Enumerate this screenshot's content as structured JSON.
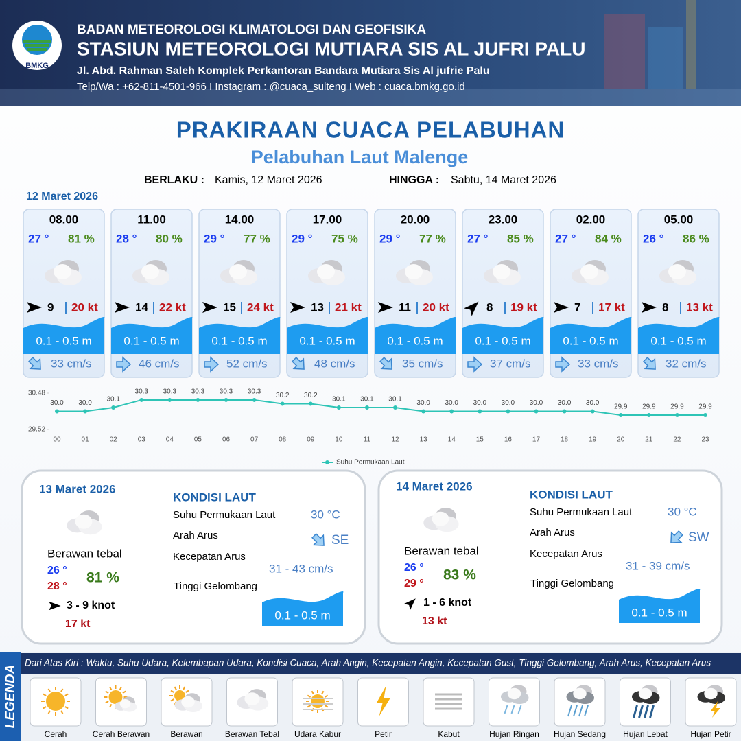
{
  "header": {
    "logo": "BMKG",
    "agency": "BADAN METEOROLOGI KLIMATOLOGI DAN GEOFISIKA",
    "station": "STASIUN METEOROLOGI MUTIARA SIS AL JUFRI PALU",
    "address": "Jl. Abd. Rahman Saleh Komplek Perkantoran Bandara Mutiara Sis Al jufrie Palu",
    "contact": "Telp/Wa : +62-811-4501-966  I  Instagram : @cuaca_sulteng  I  Web : cuaca.bmkg.go.id"
  },
  "title": "PRAKIRAAN CUACA PELABUHAN",
  "subtitle": "Pelabuhan Laut Malenge",
  "validity": {
    "from_label": "BERLAKU :",
    "from": "Kamis, 12 Maret 2026",
    "to_label": "HINGGA :",
    "to": "Sabtu, 14 Maret 2026"
  },
  "day1": {
    "date": "12 Maret 2026",
    "slots": [
      {
        "time": "08.00",
        "temp": "27 °",
        "humidity": "81 %",
        "wind": "9",
        "gust": "20 kt",
        "wave": "0.1 - 0.5 m",
        "current": "33 cm/s"
      },
      {
        "time": "11.00",
        "temp": "28 °",
        "humidity": "80 %",
        "wind": "14",
        "gust": "22 kt",
        "wave": "0.1 - 0.5 m",
        "current": "46 cm/s"
      },
      {
        "time": "14.00",
        "temp": "29 °",
        "humidity": "77 %",
        "wind": "15",
        "gust": "24 kt",
        "wave": "0.1 - 0.5 m",
        "current": "52 cm/s"
      },
      {
        "time": "17.00",
        "temp": "29 °",
        "humidity": "75 %",
        "wind": "13",
        "gust": "21 kt",
        "wave": "0.1 - 0.5 m",
        "current": "48 cm/s"
      },
      {
        "time": "20.00",
        "temp": "29 °",
        "humidity": "77 %",
        "wind": "11",
        "gust": "20 kt",
        "wave": "0.1 - 0.5 m",
        "current": "35 cm/s"
      },
      {
        "time": "23.00",
        "temp": "27 °",
        "humidity": "85 %",
        "wind": "8",
        "gust": "19 kt",
        "wave": "0.1 - 0.5 m",
        "current": "37 cm/s"
      },
      {
        "time": "02.00",
        "temp": "27 °",
        "humidity": "84 %",
        "wind": "7",
        "gust": "17 kt",
        "wave": "0.1 - 0.5 m",
        "current": "33 cm/s"
      },
      {
        "time": "05.00",
        "temp": "26 °",
        "humidity": "86 %",
        "wind": "8",
        "gust": "13 kt",
        "wave": "0.1 - 0.5 m",
        "current": "32 cm/s"
      }
    ]
  },
  "chart_data": {
    "type": "line",
    "categories": [
      "00",
      "01",
      "02",
      "03",
      "04",
      "05",
      "06",
      "07",
      "08",
      "09",
      "10",
      "11",
      "12",
      "13",
      "14",
      "15",
      "16",
      "17",
      "18",
      "19",
      "20",
      "21",
      "22",
      "23"
    ],
    "series": [
      {
        "name": "Suhu Permukaan Laut",
        "color": "#2ec4b6",
        "values": [
          30.0,
          30.0,
          30.1,
          30.3,
          30.3,
          30.3,
          30.3,
          30.3,
          30.2,
          30.2,
          30.1,
          30.1,
          30.1,
          30.0,
          30.0,
          30.0,
          30.0,
          30.0,
          30.0,
          30.0,
          29.9,
          29.9,
          29.9,
          29.9
        ],
        "value_labels": [
          "30.0",
          "30.0",
          "30.1",
          "30.3",
          "30.3",
          "30.3",
          "30.3",
          "30.3",
          "30.2",
          "30.2",
          "30.1",
          "30.1",
          "30.1",
          "30.0",
          "30.0",
          "30.0",
          "30.0",
          "30.0",
          "30.0",
          "30.0",
          "29.9",
          "29.9",
          "29.9",
          "29.9"
        ]
      }
    ],
    "ylim": [
      29.52,
      30.48
    ],
    "yticks": [
      29.52,
      30.48
    ],
    "grid": false,
    "legend": "bottom"
  },
  "days": [
    {
      "date": "13 Maret 2026",
      "heading": "KONDISI LAUT",
      "weather": "Berawan tebal",
      "temp_min": "26 °",
      "temp_max": "28 °",
      "humidity": "81 %",
      "wind": "3  - 9 knot",
      "gust": "17 kt",
      "sst_label": "Suhu Permukaan Laut",
      "sst": "30 °C",
      "dir_label": "Arah Arus",
      "dir": "SE",
      "speed_label": "Kecepatan Arus",
      "speed": "31  - 43 cm/s",
      "wave_label": "Tinggi Gelombang",
      "wave": "0.1 - 0.5 m"
    },
    {
      "date": "14 Maret 2026",
      "heading": "KONDISI LAUT",
      "weather": "Berawan tebal",
      "temp_min": "26 °",
      "temp_max": "29 °",
      "humidity": "83 %",
      "wind": "1  - 6 knot",
      "gust": "13 kt",
      "sst_label": "Suhu Permukaan Laut",
      "sst": "30 °C",
      "dir_label": "Arah Arus",
      "dir": "SW",
      "speed_label": "Kecepatan Arus",
      "speed": "31  - 39 cm/s",
      "wave_label": "Tinggi Gelombang",
      "wave": "0.1 - 0.5 m"
    }
  ],
  "legend": {
    "title": "LEGENDA",
    "description": "Dari Atas Kiri : Waktu, Suhu Udara, Kelembapan Udara, Kondisi Cuaca, Arah Angin, Kecepatan Angin, Kecepatan Gust, Tinggi Gelombang, Arah Arus, Kecepatan Arus",
    "items": [
      "Cerah",
      "Cerah Berawan",
      "Berawan",
      "Berawan Tebal",
      "Udara Kabur",
      "Petir",
      "Kabut",
      "Hujan Ringan",
      "Hujan Sedang",
      "Hujan Lebat",
      "Hujan Petir"
    ]
  }
}
